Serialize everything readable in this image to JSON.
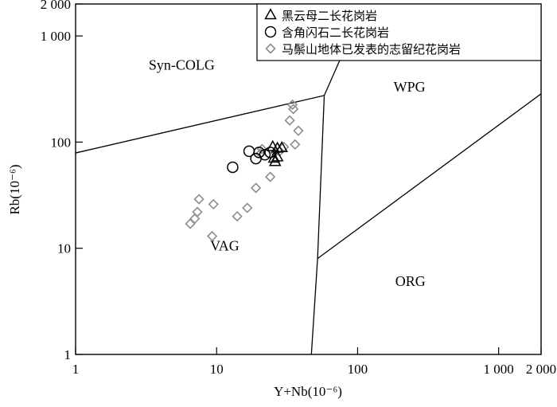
{
  "chart_data": {
    "type": "scatter",
    "title": "",
    "xlabel": "Y+Nb(10⁻⁶)",
    "ylabel": "Rb(10⁻⁶)",
    "x_scale": "log",
    "y_scale": "log",
    "xlim": [
      1,
      2000
    ],
    "ylim": [
      1,
      2000
    ],
    "x_ticks": [
      {
        "value": 1,
        "label": "1"
      },
      {
        "value": 10,
        "label": "10"
      },
      {
        "value": 100,
        "label": "100"
      },
      {
        "value": 1000,
        "label": "1 000"
      },
      {
        "value": 2000,
        "label": "2 000"
      }
    ],
    "y_ticks": [
      {
        "value": 1,
        "label": "1"
      },
      {
        "value": 10,
        "label": "10"
      },
      {
        "value": 100,
        "label": "100"
      },
      {
        "value": 1000,
        "label": "1 000"
      },
      {
        "value": 2000,
        "label": "2 000"
      }
    ],
    "grid": false,
    "legend_placement": "top-right",
    "series": [
      {
        "name": "黑云母二长花岗岩",
        "marker": "triangle",
        "color": "#000000",
        "points": [
          {
            "x": 25,
            "y": 90
          },
          {
            "x": 27,
            "y": 87
          },
          {
            "x": 29,
            "y": 88
          },
          {
            "x": 25.5,
            "y": 70
          },
          {
            "x": 26,
            "y": 65
          },
          {
            "x": 27,
            "y": 72
          }
        ]
      },
      {
        "name": "含角闪石二长花岗岩",
        "marker": "circle",
        "color": "#000000",
        "points": [
          {
            "x": 13,
            "y": 58
          },
          {
            "x": 17,
            "y": 82
          },
          {
            "x": 19,
            "y": 70
          },
          {
            "x": 20,
            "y": 80
          },
          {
            "x": 22,
            "y": 76
          },
          {
            "x": 24,
            "y": 80
          }
        ]
      },
      {
        "name": "马鬃山地体已发表的志留纪花岗岩",
        "marker": "diamond",
        "color": "#8c8c8c",
        "points": [
          {
            "x": 6.5,
            "y": 17
          },
          {
            "x": 7,
            "y": 19
          },
          {
            "x": 7.3,
            "y": 22
          },
          {
            "x": 7.5,
            "y": 29
          },
          {
            "x": 9.3,
            "y": 13
          },
          {
            "x": 9.5,
            "y": 26
          },
          {
            "x": 14,
            "y": 20
          },
          {
            "x": 16.5,
            "y": 24
          },
          {
            "x": 19,
            "y": 37
          },
          {
            "x": 24,
            "y": 47
          },
          {
            "x": 20.5,
            "y": 78
          },
          {
            "x": 21,
            "y": 86
          },
          {
            "x": 26,
            "y": 80
          },
          {
            "x": 28,
            "y": 82
          },
          {
            "x": 30,
            "y": 90
          },
          {
            "x": 33,
            "y": 160
          },
          {
            "x": 34.5,
            "y": 225
          },
          {
            "x": 35,
            "y": 205
          },
          {
            "x": 36,
            "y": 95
          },
          {
            "x": 38,
            "y": 128
          }
        ]
      }
    ],
    "boundaries": [
      {
        "name": "syn-colg-vag",
        "points": [
          [
            1,
            79
          ],
          [
            58,
            275
          ]
        ]
      },
      {
        "name": "syn-colg-wpg",
        "points": [
          [
            58,
            275
          ],
          [
            112,
            2000
          ]
        ]
      },
      {
        "name": "vag-wpg",
        "points": [
          [
            58,
            275
          ],
          [
            52,
            8
          ]
        ]
      },
      {
        "name": "vag-org",
        "points": [
          [
            52,
            8
          ],
          [
            47,
            1
          ]
        ]
      },
      {
        "name": "wpg-org",
        "points": [
          [
            52,
            8
          ],
          [
            2000,
            285
          ]
        ]
      }
    ],
    "field_labels": [
      {
        "text": "Syn-COLG",
        "x": 3.3,
        "y": 480
      },
      {
        "text": "WPG",
        "x": 180,
        "y": 300
      },
      {
        "text": "VAG",
        "x": 9,
        "y": 9.5
      },
      {
        "text": "ORG",
        "x": 185,
        "y": 4.4
      }
    ]
  }
}
